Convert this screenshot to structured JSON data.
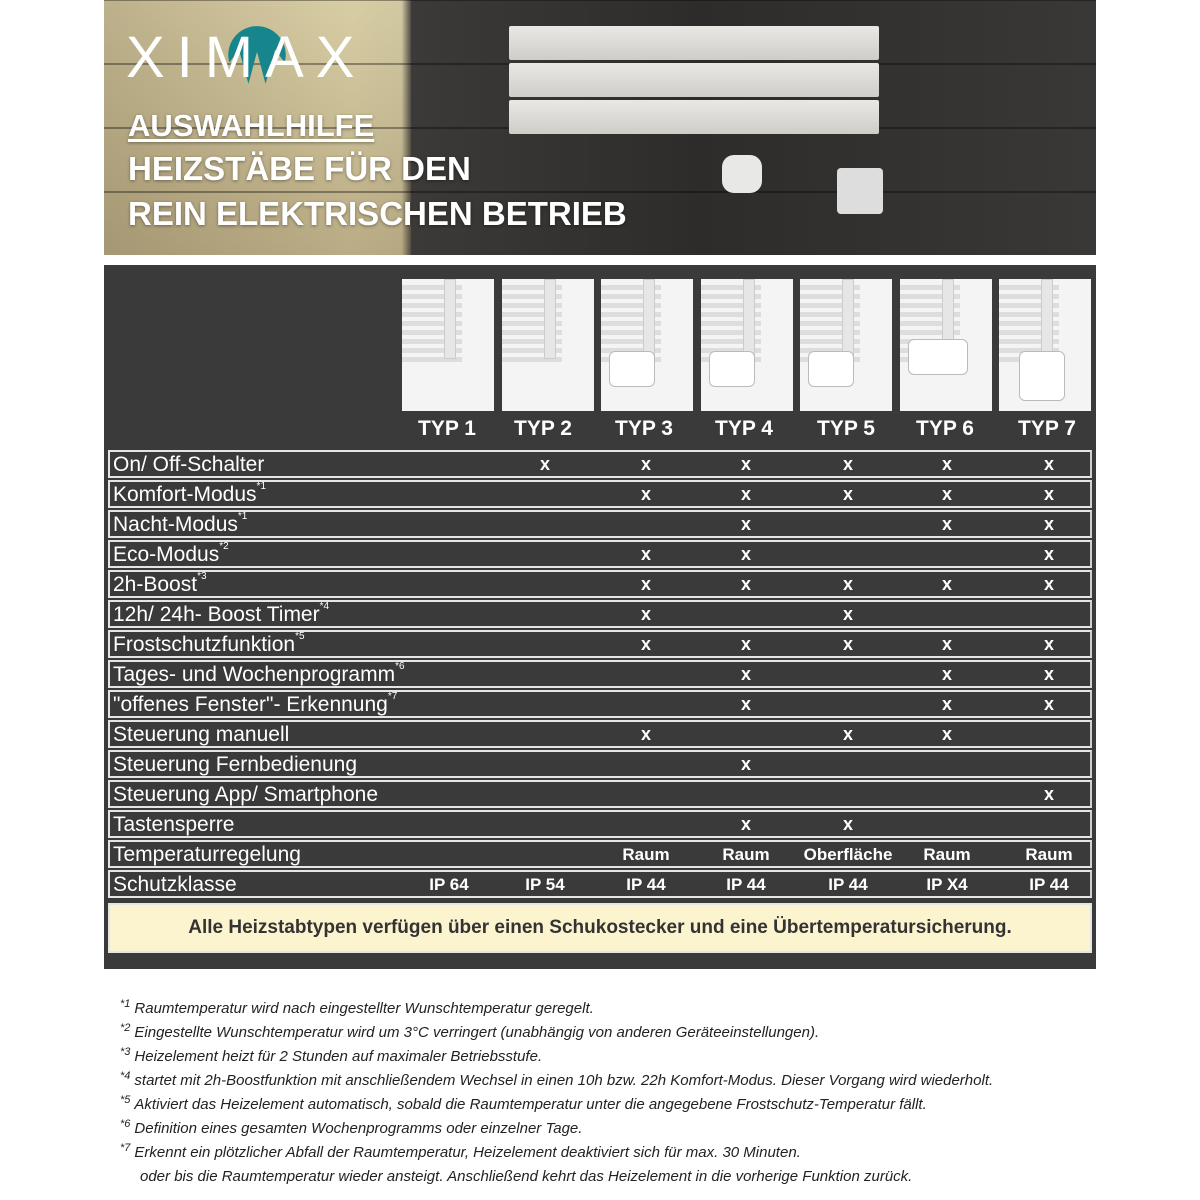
{
  "brand": "XIMAX",
  "header": {
    "line1": "AUSWAHLHILFE",
    "line2": "HEIZSTÄBE FÜR DEN",
    "line3": "REIN ELEKTRISCHEN BETRIEB"
  },
  "colors": {
    "brand_teal": "#17868c",
    "table_bg": "#3a3a3a",
    "note_bg": "#fcf4cf"
  },
  "types": [
    "TYP 1",
    "TYP 2",
    "TYP 3",
    "TYP 4",
    "TYP 5",
    "TYP 6",
    "TYP 7"
  ],
  "rows": [
    {
      "label": "On/ Off-Schalter",
      "ref": "",
      "cells": [
        "",
        "x",
        "x",
        "x",
        "x",
        "x",
        "x"
      ]
    },
    {
      "label": "Komfort-Modus",
      "ref": "*1",
      "cells": [
        "",
        "",
        "x",
        "x",
        "x",
        "x",
        "x"
      ]
    },
    {
      "label": "Nacht-Modus",
      "ref": "*1",
      "cells": [
        "",
        "",
        "",
        "x",
        "",
        "x",
        "x"
      ]
    },
    {
      "label": "Eco-Modus",
      "ref": "*2",
      "cells": [
        "",
        "",
        "x",
        "x",
        "",
        "",
        "x"
      ]
    },
    {
      "label": "2h-Boost",
      "ref": "*3",
      "cells": [
        "",
        "",
        "x",
        "x",
        "x",
        "x",
        "x"
      ]
    },
    {
      "label": "12h/ 24h- Boost Timer",
      "ref": "*4",
      "cells": [
        "",
        "",
        "x",
        "",
        "x",
        "",
        ""
      ]
    },
    {
      "label": "Frostschutzfunktion",
      "ref": "*5",
      "cells": [
        "",
        "",
        "x",
        "x",
        "x",
        "x",
        "x"
      ]
    },
    {
      "label": "Tages- und Wochenprogramm",
      "ref": "*6",
      "cells": [
        "",
        "",
        "",
        "x",
        "",
        "x",
        "x"
      ]
    },
    {
      "label": "\"offenes Fenster\"- Erkennung",
      "ref": "*7",
      "cells": [
        "",
        "",
        "",
        "x",
        "",
        "x",
        "x"
      ]
    },
    {
      "label": "Steuerung manuell",
      "ref": "",
      "cells": [
        "",
        "",
        "x",
        "",
        "x",
        "x",
        ""
      ]
    },
    {
      "label": "Steuerung Fernbedienung",
      "ref": "",
      "cells": [
        "",
        "",
        "",
        "x",
        "",
        "",
        ""
      ]
    },
    {
      "label": "Steuerung App/ Smartphone",
      "ref": "",
      "cells": [
        "",
        "",
        "",
        "",
        "",
        "",
        "x"
      ]
    },
    {
      "label": "Tastensperre",
      "ref": "",
      "cells": [
        "",
        "",
        "",
        "x",
        "x",
        "",
        ""
      ]
    },
    {
      "label": "Temperaturregelung",
      "ref": "",
      "cells": [
        "",
        "",
        "Raum",
        "Raum",
        "Oberfläche",
        "Raum",
        "Raum"
      ]
    },
    {
      "label": "Schutzklasse",
      "ref": "",
      "cells": [
        "IP 64",
        "IP 54",
        "IP 44",
        "IP 44",
        "IP 44",
        "IP X4",
        "IP 44"
      ]
    }
  ],
  "note": "Alle Heizstabtypen verfügen über einen Schukostecker und eine Übertemperatursicherung.",
  "footnotes": [
    {
      "ref": "*1",
      "text": "Raumtemperatur wird nach eingestellter Wunschtemperatur geregelt."
    },
    {
      "ref": "*2",
      "text": "Eingestellte Wunschtemperatur wird um 3°C verringert (unabhängig von anderen Geräteeinstellungen)."
    },
    {
      "ref": "*3",
      "text": "Heizelement heizt für 2 Stunden auf maximaler Betriebsstufe."
    },
    {
      "ref": "*4",
      "text": "startet mit 2h-Boostfunktion mit anschließendem Wechsel in einen 10h bzw. 22h Komfort-Modus. Dieser Vorgang wird wiederholt."
    },
    {
      "ref": "*5",
      "text": "Aktiviert das Heizelement automatisch, sobald die Raumtemperatur unter die angegebene Frostschutz-Temperatur fällt."
    },
    {
      "ref": "*6",
      "text": "Definition eines gesamten Wochenprogramms oder einzelner Tage."
    },
    {
      "ref": "*7",
      "text": "Erkennt ein plötzlicher Abfall der Raumtemperatur, Heizelement deaktiviert sich für max. 30 Minuten."
    },
    {
      "ref": "",
      "text": "oder bis die Raumtemperatur wieder ansteigt. Anschließend kehrt das Heizelement in die vorherige Funktion zurück."
    }
  ]
}
